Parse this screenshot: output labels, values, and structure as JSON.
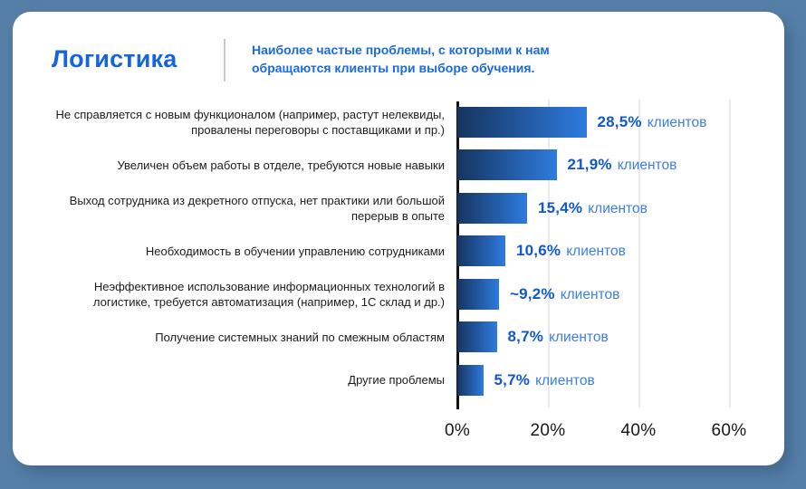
{
  "header": {
    "title": "Логистика",
    "subtitle_lines": [
      "Наиболее частые проблемы, с которыми к нам",
      "обращаются клиенты при выборе обучения."
    ]
  },
  "chart_data": {
    "type": "bar",
    "orientation": "horizontal",
    "title": "Наиболее частые проблемы, с которыми к нам обращаются клиенты при выборе обучения.",
    "categories": [
      "Не справляется с новым функционалом (например, растут нелеквиды, провалены переговоры с поставщиками и пр.)",
      "Увеличен объем работы в отделе, требуются новые навыки",
      "Выход сотрудника из декретного отпуска, нет практики или большой перерыв в опыте",
      "Необходимость в обучении управлению сотрудниками",
      "Неэффективное использование информационных технологий в логистике, требуется автоматизация (например, 1С склад и др.)",
      "Получение системных знаний по смежным областям",
      "Другие проблемы"
    ],
    "values": [
      28.5,
      21.9,
      15.4,
      10.6,
      9.2,
      8.7,
      5.7
    ],
    "value_labels": [
      "28,5%",
      "21,9%",
      "15,4%",
      "10,6%",
      "~9,2%",
      "8,7%",
      "5,7%"
    ],
    "unit_suffix": "клиентов",
    "x_ticks": [
      0,
      20,
      40,
      60
    ],
    "x_tick_labels": [
      "0%",
      "20%",
      "40%",
      "60%"
    ],
    "xlim": [
      0,
      66
    ],
    "grid": "vertical-gridlines-at-ticks",
    "legend": "none",
    "bar_gradient_left": "#16355f",
    "bar_gradient_right": "#2e7bdf"
  },
  "colors": {
    "page_background": "#567fa8",
    "card_background": "#ffffff",
    "title_blue": "#1564da",
    "subtitle_blue": "#1a6ae0",
    "value_blue": "#1057d0",
    "unit_blue": "#3c7fe1",
    "label_text": "#1b1c1e",
    "axis_text": "#17181a",
    "axis_line": "#121316",
    "gridline": "#ebebee",
    "divider": "#c5cad2"
  }
}
